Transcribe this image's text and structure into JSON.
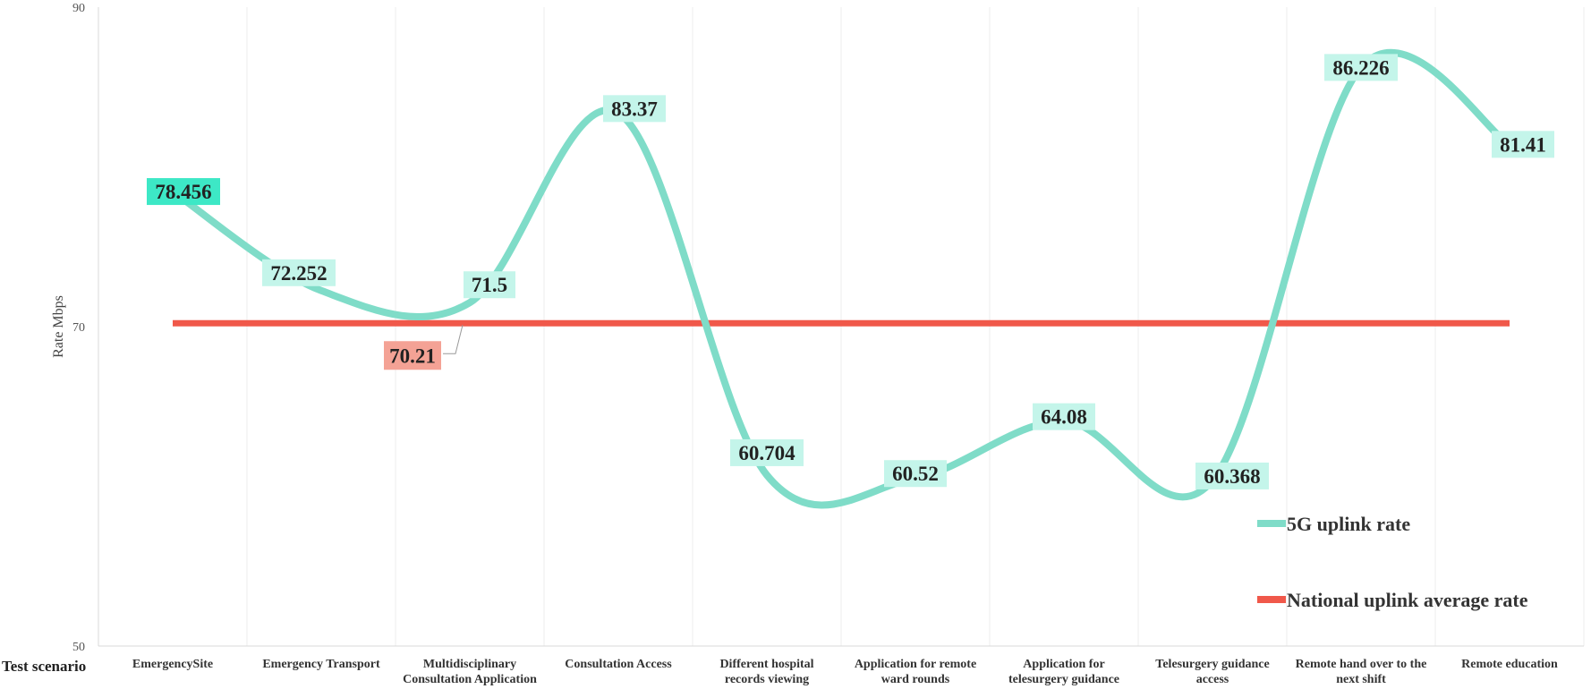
{
  "chart_data": {
    "type": "line",
    "xlabel": "Test scenario",
    "ylabel": "Rate  Mbps",
    "ylim": [
      50,
      90
    ],
    "yticks": [
      "90",
      "70",
      "50"
    ],
    "categories": [
      "EmergencySite",
      "Emergency Transport",
      "Multidisciplinary Consultation Application",
      "Consultation Access",
      "Different hospital records  viewing",
      "Application for remote ward rounds",
      "Application for telesurgery guidance",
      "Telesurgery guidance access",
      "Remote hand over to the next shift",
      "Remote education"
    ],
    "category_lines": [
      [
        "EmergencySite"
      ],
      [
        "Emergency Transport"
      ],
      [
        "Multidisciplinary",
        "Consultation Application"
      ],
      [
        "Consultation Access"
      ],
      [
        "Different hospital",
        "records  viewing"
      ],
      [
        "Application for remote",
        "ward rounds"
      ],
      [
        "Application for",
        "telesurgery guidance"
      ],
      [
        "Telesurgery guidance",
        "access"
      ],
      [
        "Remote hand over to the",
        "next shift"
      ],
      [
        "Remote education"
      ]
    ],
    "series": [
      {
        "name": "5G uplink rate",
        "color": "#7fdcc8",
        "smooth": true,
        "values": [
          78.456,
          72.252,
          71.5,
          83.37,
          60.704,
          60.52,
          64.08,
          60.368,
          86.226,
          81.41
        ],
        "labels": [
          "78.456",
          "72.252",
          "71.5",
          "83.37",
          "60.704",
          "60.52",
          "64.08",
          "60.368",
          "86.226",
          "81.41"
        ]
      },
      {
        "name": "National uplink average rate",
        "color": "#f0584a",
        "smooth": false,
        "values": [
          70.21,
          70.21,
          70.21,
          70.21,
          70.21,
          70.21,
          70.21,
          70.21,
          70.21,
          70.21
        ],
        "labels": [
          "70.21"
        ]
      }
    ],
    "grid": "vertical",
    "legend": "bottom-right"
  }
}
